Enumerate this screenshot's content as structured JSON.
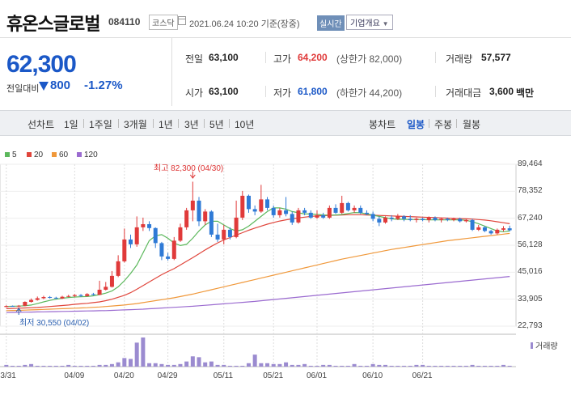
{
  "header": {
    "name": "휴온스글로벌",
    "code": "084110",
    "market": "코스닥",
    "datetime": "2021.06.24 10:20 기준(장중)",
    "realtime": "실시간",
    "company_info": "기업개요"
  },
  "price": {
    "current": "62,300",
    "change_label": "전일대비",
    "change": "800",
    "change_pct": "-1.27%"
  },
  "stats": {
    "prev_close": {
      "label": "전일",
      "value": "63,100"
    },
    "open": {
      "label": "시가",
      "value": "63,100"
    },
    "high": {
      "label": "고가",
      "value": "64,200",
      "note": "(상한가 82,000)"
    },
    "low": {
      "label": "저가",
      "value": "61,800",
      "note": "(하한가 44,200)"
    },
    "volume": {
      "label": "거래량",
      "value": "57,577"
    },
    "amount": {
      "label": "거래대금",
      "value": "3,600",
      "unit": "백만"
    }
  },
  "tabs": {
    "line_chart": "선차트",
    "periods": [
      "1일",
      "1주일",
      "3개월",
      "1년",
      "3년",
      "5년",
      "10년"
    ],
    "candle_chart": "봉차트",
    "candle_periods": [
      "일봉",
      "주봉",
      "월봉"
    ]
  },
  "colors": {
    "up": "#e03a3a",
    "down": "#2f7ad6",
    "ma5": "#5cb85c",
    "ma20": "#e0453b",
    "ma60": "#f0983a",
    "ma120": "#9b6bd0",
    "volume": "#9b8bd0"
  },
  "chart_data": {
    "type": "candlestick",
    "moving_averages": [
      {
        "name": "5",
        "color": "#5cb85c"
      },
      {
        "name": "20",
        "color": "#e0453b"
      },
      {
        "name": "60",
        "color": "#f0983a"
      },
      {
        "name": "120",
        "color": "#9b6bd0"
      }
    ],
    "y_ticks": [
      22793,
      33905,
      45016,
      56128,
      67240,
      78352,
      89464
    ],
    "y_tick_labels": [
      "22,793",
      "33,905",
      "45,016",
      "56,128",
      "67,240",
      "78,352",
      "89,464"
    ],
    "ylim": [
      22793,
      89464
    ],
    "x_labels": [
      "03/31",
      "04/09",
      "04/20",
      "04/29",
      "05/11",
      "05/21",
      "06/01",
      "06/10",
      "06/21"
    ],
    "max_annotation": "최고 82,300 (04/30)",
    "min_annotation": "최저 30,550 (04/02)",
    "volume_label": "거래량",
    "candles": [
      {
        "o": 30700,
        "c": 31100,
        "h": 31400,
        "l": 30600
      },
      {
        "o": 31100,
        "c": 31000,
        "h": 31300,
        "l": 30800
      },
      {
        "o": 30900,
        "c": 31200,
        "h": 31500,
        "l": 30550
      },
      {
        "o": 31200,
        "c": 32800,
        "h": 33000,
        "l": 31000
      },
      {
        "o": 32800,
        "c": 33600,
        "h": 34200,
        "l": 32500
      },
      {
        "o": 33600,
        "c": 34300,
        "h": 35000,
        "l": 33300
      },
      {
        "o": 34300,
        "c": 34800,
        "h": 35300,
        "l": 33900
      },
      {
        "o": 34800,
        "c": 34500,
        "h": 35200,
        "l": 34200
      },
      {
        "o": 34500,
        "c": 34200,
        "h": 34900,
        "l": 33900
      },
      {
        "o": 34200,
        "c": 34900,
        "h": 35300,
        "l": 34000
      },
      {
        "o": 34900,
        "c": 35200,
        "h": 35700,
        "l": 34700
      },
      {
        "o": 35200,
        "c": 35600,
        "h": 36000,
        "l": 34800
      },
      {
        "o": 35600,
        "c": 35200,
        "h": 36000,
        "l": 34800
      },
      {
        "o": 35200,
        "c": 36000,
        "h": 36400,
        "l": 35000
      },
      {
        "o": 36000,
        "c": 35700,
        "h": 36500,
        "l": 35400
      },
      {
        "o": 35700,
        "c": 37800,
        "h": 41500,
        "l": 35600
      },
      {
        "o": 37800,
        "c": 39000,
        "h": 41000,
        "l": 37500
      },
      {
        "o": 39000,
        "c": 43500,
        "h": 45500,
        "l": 38700
      },
      {
        "o": 43500,
        "c": 49500,
        "h": 52000,
        "l": 43000
      },
      {
        "o": 49500,
        "c": 58500,
        "h": 63000,
        "l": 49000
      },
      {
        "o": 58500,
        "c": 56500,
        "h": 60500,
        "l": 55000
      },
      {
        "o": 56500,
        "c": 63500,
        "h": 68000,
        "l": 55500
      },
      {
        "o": 63500,
        "c": 64800,
        "h": 67500,
        "l": 62000
      },
      {
        "o": 64800,
        "c": 63200,
        "h": 66000,
        "l": 62000
      },
      {
        "o": 63200,
        "c": 57000,
        "h": 63500,
        "l": 55000
      },
      {
        "o": 57000,
        "c": 51500,
        "h": 57500,
        "l": 50000
      },
      {
        "o": 51500,
        "c": 50500,
        "h": 53000,
        "l": 49800
      },
      {
        "o": 50500,
        "c": 58000,
        "h": 59500,
        "l": 50000
      },
      {
        "o": 58000,
        "c": 63500,
        "h": 65000,
        "l": 57500
      },
      {
        "o": 63500,
        "c": 70500,
        "h": 71500,
        "l": 62500
      },
      {
        "o": 70500,
        "c": 74500,
        "h": 82300,
        "l": 66000
      },
      {
        "o": 74500,
        "c": 66000,
        "h": 76000,
        "l": 64000
      },
      {
        "o": 66000,
        "c": 70000,
        "h": 71000,
        "l": 64500
      },
      {
        "o": 70000,
        "c": 60500,
        "h": 70500,
        "l": 59500
      },
      {
        "o": 60500,
        "c": 58500,
        "h": 65000,
        "l": 57500
      },
      {
        "o": 58500,
        "c": 62500,
        "h": 64500,
        "l": 56500
      },
      {
        "o": 62500,
        "c": 59500,
        "h": 63500,
        "l": 58500
      },
      {
        "o": 59500,
        "c": 67500,
        "h": 74500,
        "l": 59000
      },
      {
        "o": 67500,
        "c": 76500,
        "h": 78500,
        "l": 66500
      },
      {
        "o": 76500,
        "c": 71000,
        "h": 77000,
        "l": 69500
      },
      {
        "o": 71000,
        "c": 70000,
        "h": 72500,
        "l": 68500
      },
      {
        "o": 70000,
        "c": 75000,
        "h": 81000,
        "l": 69500
      },
      {
        "o": 75000,
        "c": 71500,
        "h": 76000,
        "l": 70500
      },
      {
        "o": 71500,
        "c": 68500,
        "h": 72500,
        "l": 67500
      },
      {
        "o": 68500,
        "c": 70500,
        "h": 71500,
        "l": 67500
      },
      {
        "o": 70500,
        "c": 69000,
        "h": 76000,
        "l": 68000
      },
      {
        "o": 69000,
        "c": 65500,
        "h": 70000,
        "l": 64500
      },
      {
        "o": 65500,
        "c": 70500,
        "h": 71500,
        "l": 65000
      },
      {
        "o": 70500,
        "c": 69500,
        "h": 71500,
        "l": 68500
      },
      {
        "o": 69500,
        "c": 67500,
        "h": 70500,
        "l": 67000
      },
      {
        "o": 67500,
        "c": 68500,
        "h": 70500,
        "l": 67000
      },
      {
        "o": 68500,
        "c": 67500,
        "h": 69500,
        "l": 67000
      },
      {
        "o": 67500,
        "c": 71500,
        "h": 72500,
        "l": 67000
      },
      {
        "o": 71500,
        "c": 69500,
        "h": 73000,
        "l": 69000
      },
      {
        "o": 69500,
        "c": 73500,
        "h": 76500,
        "l": 69000
      },
      {
        "o": 73500,
        "c": 70500,
        "h": 74000,
        "l": 70000
      },
      {
        "o": 70500,
        "c": 71500,
        "h": 72500,
        "l": 69500
      },
      {
        "o": 71500,
        "c": 69500,
        "h": 72500,
        "l": 69000
      },
      {
        "o": 69500,
        "c": 69000,
        "h": 70500,
        "l": 68500
      },
      {
        "o": 69000,
        "c": 67000,
        "h": 70000,
        "l": 66000
      },
      {
        "o": 67000,
        "c": 65500,
        "h": 68000,
        "l": 64000
      },
      {
        "o": 65500,
        "c": 67500,
        "h": 68000,
        "l": 65000
      },
      {
        "o": 67500,
        "c": 67000,
        "h": 68500,
        "l": 66000
      },
      {
        "o": 67000,
        "c": 68000,
        "h": 69000,
        "l": 66500
      },
      {
        "o": 68000,
        "c": 67000,
        "h": 68500,
        "l": 66000
      },
      {
        "o": 67000,
        "c": 66500,
        "h": 68500,
        "l": 66000
      },
      {
        "o": 66500,
        "c": 67000,
        "h": 67500,
        "l": 65500
      },
      {
        "o": 67000,
        "c": 66500,
        "h": 67500,
        "l": 66000
      },
      {
        "o": 66500,
        "c": 67500,
        "h": 68000,
        "l": 65500
      },
      {
        "o": 67500,
        "c": 66500,
        "h": 68000,
        "l": 66000
      },
      {
        "o": 66500,
        "c": 67000,
        "h": 67500,
        "l": 65500
      },
      {
        "o": 67000,
        "c": 66500,
        "h": 67500,
        "l": 66000
      },
      {
        "o": 66500,
        "c": 67000,
        "h": 67500,
        "l": 66000
      },
      {
        "o": 67000,
        "c": 66000,
        "h": 67500,
        "l": 65500
      },
      {
        "o": 66000,
        "c": 66500,
        "h": 67000,
        "l": 65500
      },
      {
        "o": 66500,
        "c": 62500,
        "h": 67000,
        "l": 62000
      },
      {
        "o": 62500,
        "c": 63500,
        "h": 64500,
        "l": 62000
      },
      {
        "o": 63500,
        "c": 62000,
        "h": 64000,
        "l": 61500
      },
      {
        "o": 62000,
        "c": 61000,
        "h": 62500,
        "l": 60500
      },
      {
        "o": 61000,
        "c": 62500,
        "h": 63000,
        "l": 60500
      },
      {
        "o": 62500,
        "c": 63100,
        "h": 64000,
        "l": 61800
      },
      {
        "o": 63100,
        "c": 62300,
        "h": 64200,
        "l": 61800
      }
    ],
    "ma5": [
      30900,
      31000,
      31050,
      31200,
      31500,
      32100,
      32800,
      33400,
      33900,
      34300,
      34600,
      34800,
      34900,
      35000,
      35300,
      35800,
      36400,
      37300,
      39000,
      41500,
      44500,
      48000,
      53000,
      58000,
      60000,
      60500,
      59000,
      57000,
      56000,
      56500,
      59000,
      62000,
      64500,
      66000,
      66000,
      64500,
      63000,
      62000,
      62500,
      64000,
      66000,
      68000,
      70000,
      71500,
      71500,
      71000,
      70000,
      69500,
      69000,
      69000,
      68800,
      68600,
      68500,
      68600,
      68800,
      69200,
      69600,
      69500,
      69000,
      68500,
      68000,
      67500,
      67000,
      66800,
      66800,
      66700,
      66700,
      66700,
      66600,
      66600,
      66600,
      66600,
      66600,
      66600,
      66400,
      65800,
      65000,
      64000,
      63000,
      62000,
      61700,
      62000
    ],
    "ma20": [
      30000,
      30100,
      30200,
      30300,
      30400,
      30500,
      30700,
      30900,
      31100,
      31300,
      31500,
      31800,
      32000,
      32200,
      32500,
      32800,
      33300,
      33900,
      34700,
      35500,
      36600,
      38000,
      39500,
      41000,
      42500,
      44000,
      45300,
      46500,
      48000,
      49500,
      51000,
      52600,
      54200,
      55700,
      57100,
      58300,
      59300,
      60300,
      61300,
      62300,
      63200,
      64000,
      64800,
      65500,
      66100,
      66600,
      67000,
      67400,
      67700,
      68000,
      68200,
      68300,
      68400,
      68500,
      68600,
      68700,
      68700,
      68700,
      68600,
      68500,
      68400,
      68300,
      68200,
      68100,
      68000,
      67900,
      67800,
      67700,
      67600,
      67500,
      67400,
      67300,
      67200,
      67100,
      67000,
      66900,
      66700,
      66500,
      66200,
      65800,
      65400,
      65000
    ],
    "ma60": [
      29200,
      29250,
      29300,
      29400,
      29500,
      29600,
      29700,
      29800,
      29900,
      30000,
      30100,
      30200,
      30300,
      30400,
      30550,
      30700,
      30900,
      31100,
      31300,
      31500,
      31800,
      32100,
      32500,
      32900,
      33300,
      33700,
      34100,
      34500,
      35000,
      35500,
      36000,
      36600,
      37200,
      37800,
      38400,
      39000,
      39600,
      40200,
      40800,
      41400,
      42000,
      42600,
      43200,
      43800,
      44400,
      45000,
      45600,
      46200,
      46800,
      47400,
      48000,
      48600,
      49200,
      49800,
      50400,
      50900,
      51400,
      51900,
      52400,
      52900,
      53400,
      53900,
      54400,
      54800,
      55200,
      55600,
      56000,
      56400,
      56800,
      57200,
      57600,
      58000,
      58300,
      58600,
      58900,
      59200,
      59500,
      59800,
      60100,
      60400,
      60700,
      61000
    ],
    "ma120": [
      28400,
      28450,
      28500,
      28550,
      28600,
      28650,
      28700,
      28750,
      28800,
      28850,
      28900,
      28950,
      29000,
      29050,
      29100,
      29150,
      29200,
      29300,
      29400,
      29500,
      29600,
      29700,
      29800,
      29950,
      30100,
      30250,
      30400,
      30550,
      30700,
      30850,
      31000,
      31200,
      31400,
      31600,
      31800,
      32000,
      32200,
      32400,
      32600,
      32800,
      33000,
      33250,
      33500,
      33750,
      34000,
      34250,
      34500,
      34750,
      35000,
      35250,
      35500,
      35750,
      36000,
      36250,
      36500,
      36750,
      37000,
      37250,
      37500,
      37750,
      38000,
      38250,
      38500,
      38750,
      39000,
      39250,
      39500,
      39750,
      40000,
      40250,
      40500,
      40750,
      41000,
      41250,
      41500,
      41750,
      42000,
      42250,
      42500,
      42750,
      43000,
      43250
    ],
    "volumes": [
      2,
      1,
      1,
      2,
      3,
      1,
      1,
      1,
      1,
      1,
      2,
      1,
      1,
      1,
      1,
      2,
      2,
      3,
      5,
      10,
      9,
      28,
      34,
      4,
      4,
      3,
      2,
      2,
      3,
      6,
      12,
      11,
      5,
      6,
      2,
      2,
      1,
      1,
      1,
      4,
      14,
      4,
      4,
      3,
      3,
      5,
      2,
      2,
      3,
      1,
      1,
      2,
      2,
      1,
      1,
      1,
      3,
      1,
      1,
      3,
      2,
      2,
      1,
      1,
      1,
      1,
      2,
      2,
      1,
      1,
      1,
      1,
      1,
      1,
      1,
      2,
      1,
      1,
      1,
      1,
      2,
      1
    ]
  }
}
